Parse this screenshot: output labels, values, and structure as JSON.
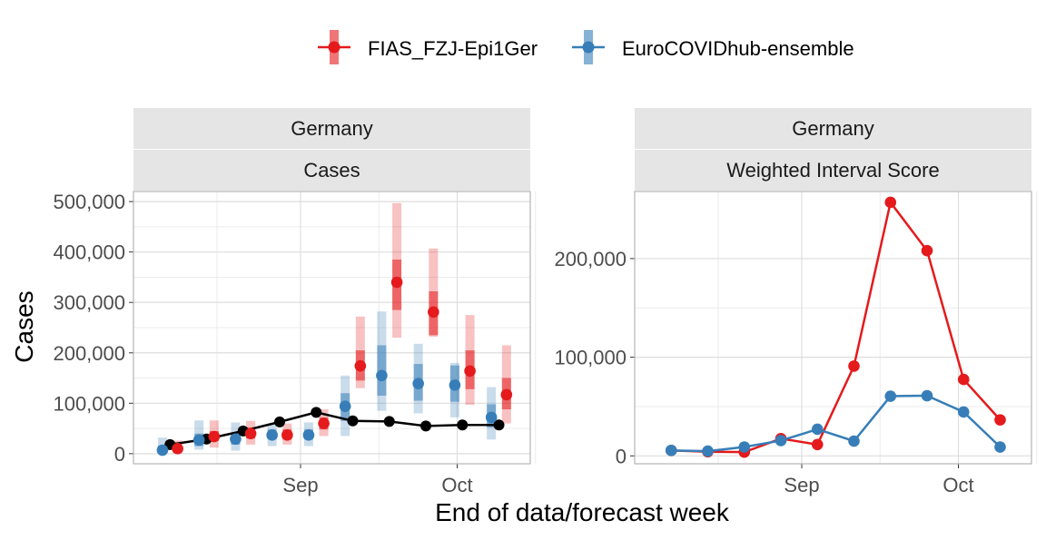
{
  "legend": {
    "items": [
      {
        "label": "FIAS_FZJ-Epi1Ger",
        "color": "#E41A1C"
      },
      {
        "label": "EuroCOVIDhub-ensemble",
        "color": "#377EB8"
      }
    ]
  },
  "xlabel": "End of data/forecast week",
  "chart_data": [
    {
      "type": "line",
      "facet_labels": [
        "Germany",
        "Cases"
      ],
      "ylabel": "Cases",
      "x_ticks": [
        "Sep",
        "Oct"
      ],
      "y_ticks": [
        "0",
        "100,000",
        "200,000",
        "300,000",
        "400,000",
        "500,000"
      ],
      "ylim": [
        -20000,
        520000
      ],
      "x": [
        "2021-08-07",
        "2021-08-14",
        "2021-08-21",
        "2021-08-28",
        "2021-09-04",
        "2021-09-11",
        "2021-09-18",
        "2021-09-25",
        "2021-10-02",
        "2021-10-09"
      ],
      "observed": {
        "color": "#000000",
        "values": [
          18000,
          29000,
          45000,
          63000,
          82000,
          65000,
          64000,
          55000,
          57000,
          57000
        ]
      },
      "series": [
        {
          "name": "FIAS_FZJ-Epi1Ger",
          "color": "#E41A1C",
          "median": [
            10000,
            34000,
            40000,
            37000,
            60000,
            174000,
            340000,
            281000,
            164000,
            117000
          ],
          "q50": [
            [
              4000,
              18000
            ],
            [
              25000,
              45000
            ],
            [
              30000,
              52000
            ],
            [
              28000,
              48000
            ],
            [
              48000,
              72000
            ],
            [
              145000,
              205000
            ],
            [
              285000,
              385000
            ],
            [
              235000,
              322000
            ],
            [
              128000,
              205000
            ],
            [
              88000,
              150000
            ]
          ],
          "q90": [
            [
              0,
              26000
            ],
            [
              12000,
              66000
            ],
            [
              18000,
              65000
            ],
            [
              18000,
              60000
            ],
            [
              35000,
              88000
            ],
            [
              130000,
              272000
            ],
            [
              230000,
              497000
            ],
            [
              232000,
              407000
            ],
            [
              97000,
              275000
            ],
            [
              60000,
              215000
            ]
          ]
        },
        {
          "name": "EuroCOVIDhub-ensemble",
          "color": "#377EB8",
          "median": [
            7000,
            27000,
            29000,
            37000,
            37000,
            94000,
            155000,
            139000,
            136000,
            72000
          ],
          "q50": [
            [
              2000,
              16000
            ],
            [
              15000,
              40000
            ],
            [
              18000,
              42000
            ],
            [
              28000,
              48000
            ],
            [
              28000,
              48000
            ],
            [
              65000,
              120000
            ],
            [
              115000,
              215000
            ],
            [
              105000,
              178000
            ],
            [
              103000,
              175000
            ],
            [
              52000,
              98000
            ]
          ],
          "q90": [
            [
              0,
              32000
            ],
            [
              8000,
              66000
            ],
            [
              6000,
              62000
            ],
            [
              15000,
              58000
            ],
            [
              15000,
              62000
            ],
            [
              35000,
              155000
            ],
            [
              85000,
              282000
            ],
            [
              80000,
              218000
            ],
            [
              72000,
              180000
            ],
            [
              28000,
              132000
            ]
          ]
        }
      ]
    },
    {
      "type": "line",
      "facet_labels": [
        "Germany",
        "Weighted Interval Score"
      ],
      "x_ticks": [
        "Sep",
        "Oct"
      ],
      "y_ticks": [
        "0",
        "100,000",
        "200,000"
      ],
      "ylim": [
        -8000,
        268000
      ],
      "x": [
        "2021-08-07",
        "2021-08-14",
        "2021-08-21",
        "2021-08-28",
        "2021-09-04",
        "2021-09-11",
        "2021-09-18",
        "2021-09-25",
        "2021-10-02",
        "2021-10-09"
      ],
      "series": [
        {
          "name": "FIAS_FZJ-Epi1Ger",
          "color": "#E41A1C",
          "values": [
            5500,
            4200,
            3800,
            17500,
            11500,
            91000,
            257000,
            208000,
            77500,
            36500
          ]
        },
        {
          "name": "EuroCOVIDhub-ensemble",
          "color": "#377EB8",
          "values": [
            5500,
            4800,
            9000,
            15500,
            27000,
            15000,
            60500,
            61000,
            44500,
            9000
          ]
        }
      ]
    }
  ]
}
